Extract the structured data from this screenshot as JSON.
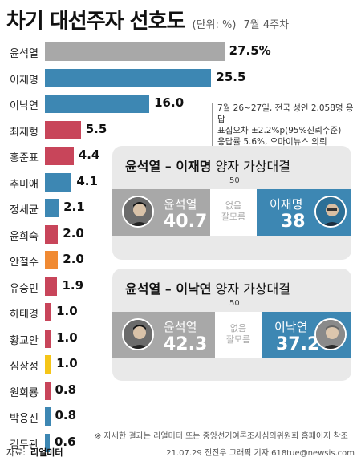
{
  "header": {
    "title": "차기 대선주자 선호도",
    "unit": "(단위: %)",
    "week": "7월 4주차"
  },
  "info": {
    "line1": "7월 26~27일, 전국 성인 2,058명 응답",
    "line2": "표집오차 ±2.2%p(95%신뢰수준)",
    "line3": "응답률 5.6%, 오마이뉴스 의뢰"
  },
  "chart_data": {
    "type": "bar",
    "orientation": "horizontal",
    "categories": [
      "윤석열",
      "이재명",
      "이낙연",
      "최재형",
      "홍준표",
      "추미애",
      "정세균",
      "윤희숙",
      "안철수",
      "유승민",
      "하태경",
      "황교안",
      "심상정",
      "원희룡",
      "박용진",
      "김두관"
    ],
    "values": [
      27.5,
      25.5,
      16.0,
      5.5,
      4.4,
      4.1,
      2.1,
      2.0,
      2.0,
      1.9,
      1.0,
      1.0,
      1.0,
      0.8,
      0.8,
      0.6
    ],
    "labels": [
      "27.5%",
      "25.5",
      "16.0",
      "5.5",
      "4.4",
      "4.1",
      "2.1",
      "2.0",
      "2.0",
      "1.9",
      "1.0",
      "1.0",
      "1.0",
      "0.8",
      "0.8",
      "0.6"
    ],
    "colors": [
      "#a8a8a8",
      "#3d87b3",
      "#3d87b3",
      "#c8455a",
      "#c8455a",
      "#3d87b3",
      "#3d87b3",
      "#c8455a",
      "#f08a33",
      "#c8455a",
      "#c8455a",
      "#c8455a",
      "#f5c518",
      "#c8455a",
      "#3d87b3",
      "#3d87b3"
    ],
    "xlim": [
      0,
      30
    ]
  },
  "matchups": [
    {
      "title_left": "윤석열",
      "title_dash": " – ",
      "title_right": "이재명",
      "title_suffix": " 양자 가상대결",
      "mark": "50",
      "left_name": "윤석열",
      "left_value": "40.7",
      "middle": "없음\n잘모름",
      "right_name": "이재명",
      "right_value": "38"
    },
    {
      "title_left": "윤석열",
      "title_dash": " – ",
      "title_right": "이낙연",
      "title_suffix": " 양자 가상대결",
      "mark": "50",
      "left_name": "윤석열",
      "left_value": "42.3",
      "middle": "없음\n잘모름",
      "right_name": "이낙연",
      "right_value": "37.2"
    }
  ],
  "footnote": "※ 자세한 결과는 리얼미터 또는 중앙선거여론조사심의위원회 홈페이지 참조",
  "source": {
    "label": "자료:",
    "value": "리얼미터"
  },
  "credit": "21.07.29 전진우 그래픽 기자 618tue@newsis.com"
}
